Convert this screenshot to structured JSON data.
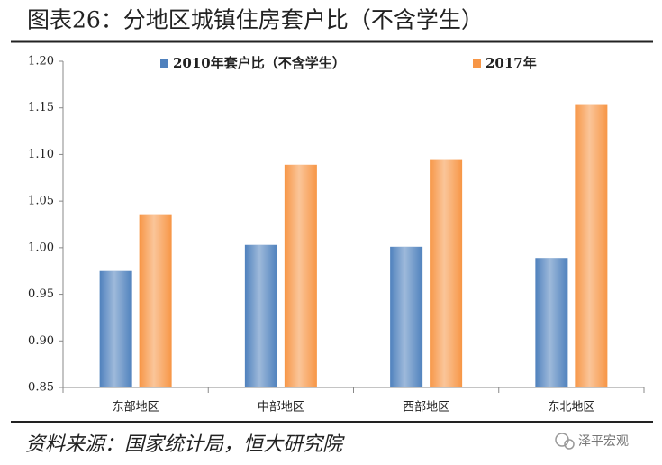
{
  "chart_data": {
    "type": "bar",
    "title": "图表26：分地区城镇住房套户比（不含学生）",
    "categories": [
      "东部地区",
      "中部地区",
      "西部地区",
      "东北地区"
    ],
    "series": [
      {
        "name": "2010年套户比（不含学生）",
        "color": "#4f81bd",
        "values": [
          0.975,
          1.003,
          1.001,
          0.989
        ]
      },
      {
        "name": "2017年",
        "color": "#f79646",
        "values": [
          1.035,
          1.089,
          1.095,
          1.154
        ]
      }
    ],
    "ylim": [
      0.85,
      1.2
    ],
    "yticks": [
      {
        "value": 0.85,
        "label": "0.85"
      },
      {
        "value": 0.9,
        "label": "0.90"
      },
      {
        "value": 0.95,
        "label": "0.95"
      },
      {
        "value": 1.0,
        "label": "1.00"
      },
      {
        "value": 1.05,
        "label": "1.05"
      },
      {
        "value": 1.1,
        "label": "1.10"
      },
      {
        "value": 1.15,
        "label": "1.15"
      },
      {
        "value": 1.2,
        "label": "1.20"
      }
    ],
    "grid": false,
    "legend": "top"
  },
  "source": "资料来源：国家统计局，恒大研究院",
  "watermark": "泽平宏观"
}
